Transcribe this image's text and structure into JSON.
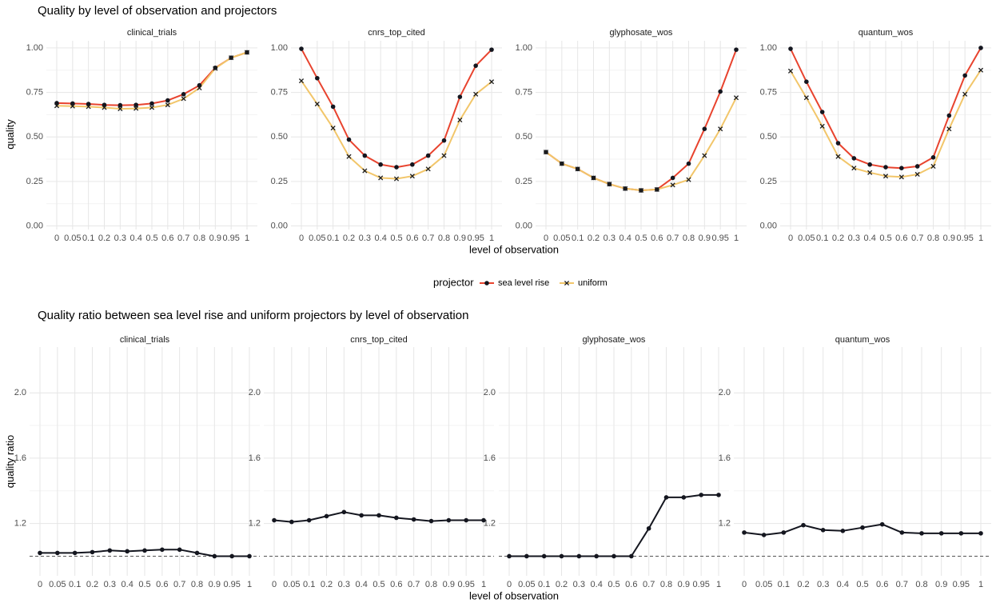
{
  "colors": {
    "sea_level_rise": "#E8432E",
    "uniform": "#F2C66A",
    "ratio_line": "#14161f",
    "point": "#14161f",
    "grid_major": "#e6e6e6",
    "grid_minor": "#f3f3f3",
    "reference_line": "#555555"
  },
  "legend": {
    "title": "projector",
    "items": [
      {
        "key": "sea_level_rise",
        "label": "sea level rise",
        "marker": "circle"
      },
      {
        "key": "uniform",
        "label": "uniform",
        "marker": "cross"
      }
    ]
  },
  "chart_data": [
    {
      "type": "line",
      "title": "Quality by level of observation and projectors",
      "xlabel": "level of observation",
      "ylabel": "quality",
      "x_tick_labels": [
        "0",
        "0.05",
        "0.1",
        "0.2",
        "0.3",
        "0.4",
        "0.5",
        "0.6",
        "0.7",
        "0.8",
        "0.9",
        "0.95",
        "1"
      ],
      "y_ticks": [
        0,
        0.25,
        0.5,
        0.75,
        1
      ],
      "y_tick_labels": [
        "0.00",
        "0.25",
        "0.50",
        "0.75",
        "1.00"
      ],
      "ylim": [
        -0.02,
        1.04
      ],
      "grid": true,
      "legend_position": "bottom",
      "facets": [
        {
          "name": "clinical_trials",
          "series": [
            {
              "name": "sea level rise",
              "values": [
                0.69,
                0.688,
                0.685,
                0.68,
                0.678,
                0.68,
                0.688,
                0.705,
                0.74,
                0.79,
                0.888,
                0.945,
                0.975
              ]
            },
            {
              "name": "uniform",
              "values": [
                0.675,
                0.673,
                0.67,
                0.665,
                0.658,
                0.66,
                0.665,
                0.68,
                0.715,
                0.775,
                0.885,
                0.945,
                0.975
              ]
            }
          ]
        },
        {
          "name": "cnrs_top_cited",
          "series": [
            {
              "name": "sea level rise",
              "values": [
                0.995,
                0.83,
                0.67,
                0.485,
                0.395,
                0.345,
                0.33,
                0.345,
                0.395,
                0.48,
                0.725,
                0.9,
                0.99
              ]
            },
            {
              "name": "uniform",
              "values": [
                0.815,
                0.685,
                0.55,
                0.39,
                0.31,
                0.27,
                0.265,
                0.28,
                0.32,
                0.395,
                0.595,
                0.74,
                0.81
              ]
            }
          ]
        },
        {
          "name": "glyphosate_wos",
          "series": [
            {
              "name": "sea level rise",
              "values": [
                0.415,
                0.35,
                0.32,
                0.27,
                0.235,
                0.21,
                0.2,
                0.205,
                0.27,
                0.35,
                0.545,
                0.755,
                0.99
              ]
            },
            {
              "name": "uniform",
              "values": [
                0.415,
                0.35,
                0.32,
                0.27,
                0.235,
                0.21,
                0.2,
                0.205,
                0.23,
                0.26,
                0.395,
                0.545,
                0.72
              ]
            }
          ]
        },
        {
          "name": "quantum_wos",
          "series": [
            {
              "name": "sea level rise",
              "values": [
                0.995,
                0.81,
                0.64,
                0.465,
                0.38,
                0.345,
                0.33,
                0.325,
                0.335,
                0.385,
                0.62,
                0.845,
                1.0
              ]
            },
            {
              "name": "uniform",
              "values": [
                0.87,
                0.72,
                0.56,
                0.39,
                0.325,
                0.3,
                0.28,
                0.275,
                0.29,
                0.335,
                0.545,
                0.74,
                0.875
              ]
            }
          ]
        }
      ]
    },
    {
      "type": "line",
      "title": "Quality ratio between sea level rise and uniform projectors by level of observation",
      "xlabel": "level of observation",
      "ylabel": "quality ratio",
      "x_tick_labels": [
        "0",
        "0.05",
        "0.1",
        "0.2",
        "0.3",
        "0.4",
        "0.5",
        "0.6",
        "0.7",
        "0.8",
        "0.9",
        "0.95",
        "1"
      ],
      "y_ticks": [
        1.2,
        1.6,
        2.0
      ],
      "y_tick_labels": [
        "1.2",
        "1.6",
        "2.0"
      ],
      "ylim": [
        0.88,
        2.28
      ],
      "reference_line": 1.0,
      "grid": true,
      "facets": [
        {
          "name": "clinical_trials",
          "series": [
            {
              "name": "ratio",
              "values": [
                1.02,
                1.02,
                1.02,
                1.025,
                1.035,
                1.03,
                1.035,
                1.04,
                1.04,
                1.02,
                1.0,
                1.0,
                1.0
              ]
            }
          ]
        },
        {
          "name": "cnrs_top_cited",
          "series": [
            {
              "name": "ratio",
              "values": [
                1.22,
                1.21,
                1.22,
                1.245,
                1.27,
                1.25,
                1.25,
                1.235,
                1.225,
                1.215,
                1.22,
                1.22,
                1.22
              ]
            }
          ]
        },
        {
          "name": "glyphosate_wos",
          "series": [
            {
              "name": "ratio",
              "values": [
                1.0,
                1.0,
                1.0,
                1.0,
                1.0,
                1.0,
                1.0,
                1.0,
                1.17,
                1.36,
                1.36,
                1.375,
                1.375
              ]
            }
          ]
        },
        {
          "name": "quantum_wos",
          "series": [
            {
              "name": "ratio",
              "values": [
                1.145,
                1.13,
                1.145,
                1.19,
                1.16,
                1.155,
                1.175,
                1.195,
                1.145,
                1.14,
                1.14,
                1.14,
                1.14
              ]
            }
          ]
        }
      ]
    }
  ]
}
